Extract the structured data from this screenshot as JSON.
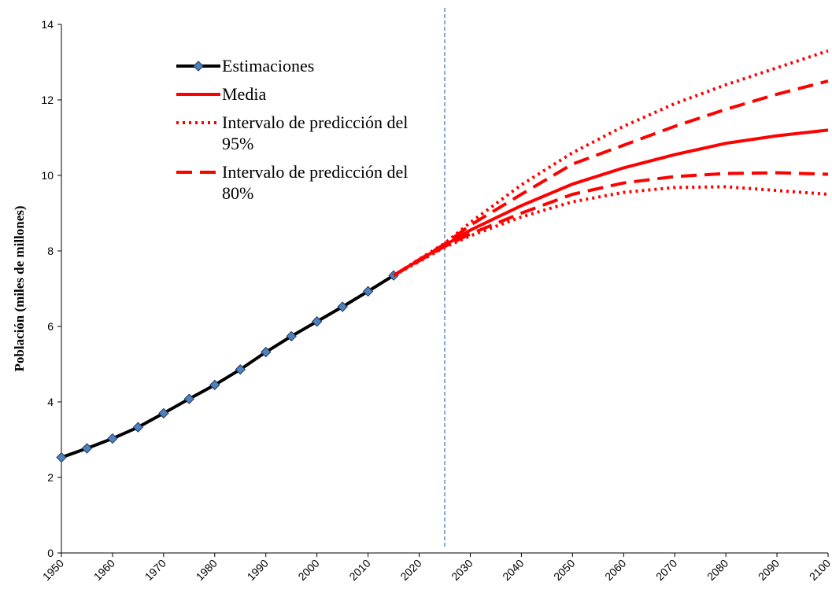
{
  "chart_data": {
    "type": "line",
    "y_label": "Población (miles de millones)",
    "xlim": [
      1950,
      2100
    ],
    "xticks": [
      1950,
      1960,
      1970,
      1980,
      1990,
      2000,
      2010,
      2020,
      2030,
      2040,
      2050,
      2060,
      2070,
      2080,
      2090,
      2100
    ],
    "ylim": [
      0,
      14
    ],
    "yticks": [
      0,
      2,
      4,
      6,
      8,
      10,
      12,
      14
    ],
    "reference_line_x": 2025,
    "series": [
      {
        "name": "Estimaciones",
        "color": "#000000",
        "style": "solid",
        "marker": "diamond",
        "x": [
          1950,
          1955,
          1960,
          1965,
          1970,
          1975,
          1980,
          1985,
          1990,
          1995,
          2000,
          2005,
          2010,
          2015
        ],
        "values": [
          2.53,
          2.77,
          3.03,
          3.33,
          3.7,
          4.08,
          4.45,
          4.86,
          5.32,
          5.74,
          6.13,
          6.52,
          6.93,
          7.35
        ]
      },
      {
        "name": "Media",
        "color": "#ff0000",
        "style": "solid",
        "x": [
          2015,
          2020,
          2025,
          2030,
          2040,
          2050,
          2060,
          2070,
          2080,
          2090,
          2100
        ],
        "values": [
          7.35,
          7.76,
          8.15,
          8.55,
          9.2,
          9.77,
          10.2,
          10.55,
          10.85,
          11.05,
          11.2
        ]
      },
      {
        "name": "Intervalo de predicción del 95%",
        "color": "#ff0000",
        "style": "dotted",
        "x": [
          2015,
          2020,
          2025,
          2030,
          2040,
          2050,
          2060,
          2070,
          2080,
          2090,
          2100
        ],
        "values": [
          7.35,
          7.78,
          8.2,
          8.75,
          9.75,
          10.6,
          11.3,
          11.9,
          12.4,
          12.85,
          13.3
        ]
      },
      {
        "name": "Intervalo de predicción del 80%",
        "color": "#ff0000",
        "style": "dashed",
        "x": [
          2015,
          2020,
          2025,
          2030,
          2040,
          2050,
          2060,
          2070,
          2080,
          2090,
          2100
        ],
        "values": [
          7.35,
          7.77,
          8.18,
          8.68,
          9.5,
          10.3,
          10.8,
          11.3,
          11.75,
          12.15,
          12.5
        ]
      },
      {
        "color": "#ff0000",
        "style": "dotted",
        "x": [
          2015,
          2020,
          2025,
          2030,
          2040,
          2050,
          2060,
          2070,
          2080,
          2090,
          2100
        ],
        "values": [
          7.35,
          7.72,
          8.1,
          8.4,
          8.9,
          9.3,
          9.55,
          9.68,
          9.7,
          9.6,
          9.5
        ]
      },
      {
        "color": "#ff0000",
        "style": "dashed",
        "x": [
          2015,
          2020,
          2025,
          2030,
          2040,
          2050,
          2060,
          2070,
          2080,
          2090,
          2100
        ],
        "values": [
          7.35,
          7.74,
          8.12,
          8.45,
          9.0,
          9.5,
          9.8,
          9.97,
          10.05,
          10.07,
          10.03
        ]
      }
    ]
  }
}
